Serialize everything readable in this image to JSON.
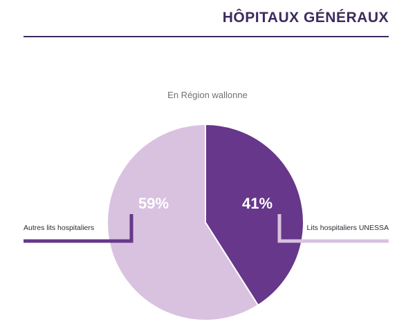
{
  "header": {
    "title": "HÔPITAUX GÉNÉRAUX"
  },
  "colors": {
    "heading": "#3d2a5e",
    "unessa": "#66378a",
    "other": "#d8c2df"
  },
  "chart_data": {
    "type": "pie",
    "title": "",
    "subtitle": "En Région wallonne",
    "slices": [
      {
        "label": "Lits hospitaliers UNESSA",
        "value": 41,
        "value_label": "41%",
        "color": "#66378a"
      },
      {
        "label": "Autres lits hospitaliers",
        "value": 59,
        "value_label": "59%",
        "color": "#d8c2df"
      }
    ],
    "start": "12 o'clock",
    "direction": "clockwise",
    "legend": "callout labels left and right"
  }
}
